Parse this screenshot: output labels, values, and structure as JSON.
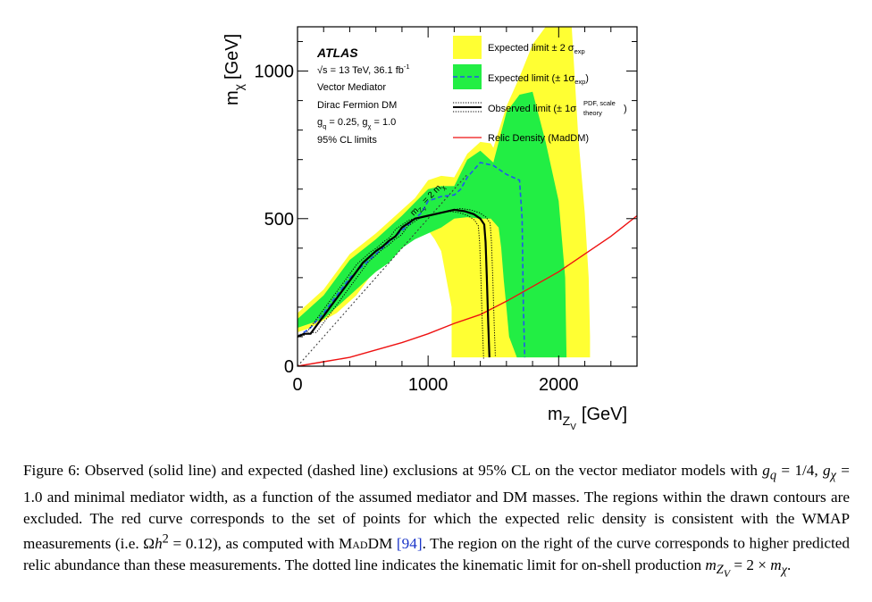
{
  "chart_data": {
    "type": "area",
    "xlabel_main": "m",
    "xlabel_sub": "Z",
    "xlabel_subsub": "V",
    "xlabel_unit": "[GeV]",
    "ylabel_main": "m",
    "ylabel_sub": "χ",
    "ylabel_unit": "[GeV]",
    "xlim": [
      0,
      2600
    ],
    "ylim": [
      0,
      1150
    ],
    "x_ticks": [
      {
        "value": 0,
        "label": "0"
      },
      {
        "value": 1000,
        "label": "1000"
      },
      {
        "value": 2000,
        "label": "2000"
      }
    ],
    "y_ticks": [
      {
        "value": 0,
        "label": "0"
      },
      {
        "value": 500,
        "label": "500"
      },
      {
        "value": 1000,
        "label": "1000"
      }
    ],
    "grid": false,
    "legend_position": "top-right",
    "atlas": {
      "label": "ATLAS",
      "energy_prefix": "√s = 13 TeV, 36.1 fb",
      "energy_sup": "-1",
      "line_mediator": "Vector Mediator",
      "line_dm": "Dirac Fermion DM",
      "g_q_label": "g",
      "g_q_sub": "q",
      "g_q_value": " = 0.25, g",
      "g_chi_sub": "χ",
      "g_chi_value": " = 1.0",
      "cl": "95% CL limits"
    },
    "kinematic_label": "m",
    "kinematic_label_sub1": "Z",
    "kinematic_label_subsub": "V",
    "kinematic_label_mid": " = 2 m",
    "kinematic_label_sub2": "χ",
    "legend": {
      "exp2_text": "Expected limit ± 2 σ",
      "exp2_sub": "exp",
      "exp1_text": "Expected limit (± 1σ",
      "exp1_sub": "exp",
      "exp1_close": ")",
      "obs_text": "Observed limit (± 1σ",
      "obs_sup": "PDF, scale",
      "obs_sub": "theory",
      "obs_close": ")",
      "relic_text": "Relic Density (MadDM)"
    },
    "colors": {
      "band_2sigma": "#ffff33",
      "band_1sigma": "#22ee44",
      "expected": "#2255ee",
      "observed": "#000000",
      "relic": "#ee1111",
      "kinematic": "#333333"
    },
    "series": [
      {
        "name": "Expected limit ± 2 σexp",
        "kind": "band",
        "outer": [
          [
            0,
            60
          ],
          [
            0,
            180
          ],
          [
            200,
            260
          ],
          [
            400,
            380
          ],
          [
            600,
            450
          ],
          [
            800,
            530
          ],
          [
            900,
            570
          ],
          [
            1000,
            630
          ],
          [
            1100,
            645
          ],
          [
            1200,
            640
          ],
          [
            1300,
            720
          ],
          [
            1400,
            760
          ],
          [
            1480,
            755
          ],
          [
            1500,
            740
          ],
          [
            1600,
            880
          ],
          [
            1700,
            980
          ],
          [
            1800,
            1090
          ],
          [
            1900,
            1150
          ],
          [
            2100,
            1150
          ],
          [
            2150,
            780
          ],
          [
            2200,
            520
          ],
          [
            2230,
            300
          ],
          [
            2240,
            100
          ],
          [
            2240,
            30
          ]
        ],
        "inner": [
          [
            1180,
            30
          ],
          [
            1180,
            200
          ],
          [
            1100,
            390
          ],
          [
            1050,
            430
          ],
          [
            1000,
            460
          ],
          [
            950,
            470
          ],
          [
            900,
            450
          ],
          [
            850,
            420
          ],
          [
            750,
            380
          ],
          [
            650,
            340
          ],
          [
            550,
            300
          ],
          [
            450,
            240
          ],
          [
            300,
            180
          ],
          [
            100,
            130
          ],
          [
            0,
            115
          ]
        ]
      },
      {
        "name": "Expected limit (± 1σexp)",
        "kind": "band",
        "outer": [
          [
            0,
            75
          ],
          [
            0,
            160
          ],
          [
            200,
            240
          ],
          [
            400,
            360
          ],
          [
            600,
            430
          ],
          [
            800,
            510
          ],
          [
            900,
            555
          ],
          [
            1000,
            600
          ],
          [
            1100,
            610
          ],
          [
            1200,
            610
          ],
          [
            1300,
            700
          ],
          [
            1400,
            730
          ],
          [
            1450,
            710
          ],
          [
            1500,
            690
          ],
          [
            1600,
            860
          ],
          [
            1700,
            920
          ],
          [
            1800,
            930
          ],
          [
            1900,
            760
          ],
          [
            2000,
            560
          ],
          [
            2050,
            300
          ],
          [
            2060,
            30
          ]
        ],
        "outer_end": [
          [
            1790,
            30
          ]
        ],
        "inner": [
          [
            1680,
            30
          ],
          [
            1620,
            100
          ],
          [
            1600,
            200
          ],
          [
            1580,
            290
          ],
          [
            1560,
            400
          ],
          [
            1540,
            470
          ],
          [
            1480,
            500
          ],
          [
            1400,
            500
          ],
          [
            1300,
            505
          ],
          [
            1200,
            500
          ],
          [
            1100,
            470
          ],
          [
            1000,
            450
          ],
          [
            900,
            430
          ],
          [
            800,
            400
          ],
          [
            700,
            350
          ],
          [
            600,
            320
          ],
          [
            500,
            280
          ],
          [
            400,
            240
          ],
          [
            200,
            160
          ],
          [
            0,
            130
          ]
        ]
      },
      {
        "name": "Expected",
        "kind": "line",
        "style": "dashed",
        "points": [
          [
            0,
            100
          ],
          [
            100,
            130
          ],
          [
            200,
            180
          ],
          [
            300,
            240
          ],
          [
            400,
            300
          ],
          [
            500,
            340
          ],
          [
            600,
            380
          ],
          [
            700,
            420
          ],
          [
            800,
            460
          ],
          [
            900,
            500
          ],
          [
            950,
            520
          ],
          [
            1000,
            560
          ],
          [
            1100,
            575
          ],
          [
            1200,
            580
          ],
          [
            1250,
            600
          ],
          [
            1300,
            640
          ],
          [
            1400,
            690
          ],
          [
            1500,
            680
          ],
          [
            1600,
            650
          ],
          [
            1700,
            630
          ],
          [
            1720,
            500
          ],
          [
            1730,
            200
          ],
          [
            1740,
            30
          ]
        ]
      },
      {
        "name": "Observed",
        "kind": "line",
        "style": "solid",
        "points": [
          [
            0,
            100
          ],
          [
            50,
            110
          ],
          [
            100,
            110
          ],
          [
            150,
            140
          ],
          [
            200,
            170
          ],
          [
            250,
            200
          ],
          [
            300,
            230
          ],
          [
            350,
            260
          ],
          [
            400,
            290
          ],
          [
            450,
            320
          ],
          [
            500,
            350
          ],
          [
            550,
            370
          ],
          [
            600,
            390
          ],
          [
            650,
            405
          ],
          [
            700,
            425
          ],
          [
            750,
            440
          ],
          [
            800,
            470
          ],
          [
            900,
            500
          ],
          [
            1000,
            510
          ],
          [
            1100,
            520
          ],
          [
            1200,
            530
          ],
          [
            1280,
            525
          ],
          [
            1350,
            515
          ],
          [
            1400,
            500
          ],
          [
            1430,
            480
          ],
          [
            1440,
            420
          ],
          [
            1450,
            300
          ],
          [
            1460,
            150
          ],
          [
            1470,
            30
          ]
        ]
      },
      {
        "name": "Relic Density (MadDM)",
        "kind": "line",
        "style": "solid",
        "points": [
          [
            0,
            0
          ],
          [
            200,
            15
          ],
          [
            400,
            30
          ],
          [
            600,
            55
          ],
          [
            800,
            80
          ],
          [
            1000,
            110
          ],
          [
            1200,
            145
          ],
          [
            1400,
            175
          ],
          [
            1600,
            220
          ],
          [
            1800,
            270
          ],
          [
            2000,
            320
          ],
          [
            2200,
            380
          ],
          [
            2400,
            440
          ],
          [
            2600,
            510
          ]
        ]
      },
      {
        "name": "Kinematic limit",
        "kind": "line",
        "style": "dotted",
        "points": [
          [
            0,
            0
          ],
          [
            1300,
            650
          ]
        ]
      }
    ]
  },
  "caption": {
    "lead": "Figure 6: Observed (solid line) and expected (dashed line) exclusions at 95% CL on the vector mediator models with",
    "line2": "g_q = 1/4, g_χ = 1.0 and minimal mediator width, as a function of the assumed mediator and DM masses. The regions",
    "line3": "within the drawn contours are excluded. The red curve corresponds to the set of points for which the expected relic",
    "line4a": "density is consistent with the WMAP measurements (i.e. Ωh² = 0.12), as computed with ",
    "maddm": "MadDM",
    "ref": "[94]",
    "line4b": ". The region",
    "line5": "on the right of the curve corresponds to higher predicted relic abundance than these measurements. The dotted line",
    "line6": "indicates the kinematic limit for on-shell production m_ZV = 2 × m_χ."
  }
}
